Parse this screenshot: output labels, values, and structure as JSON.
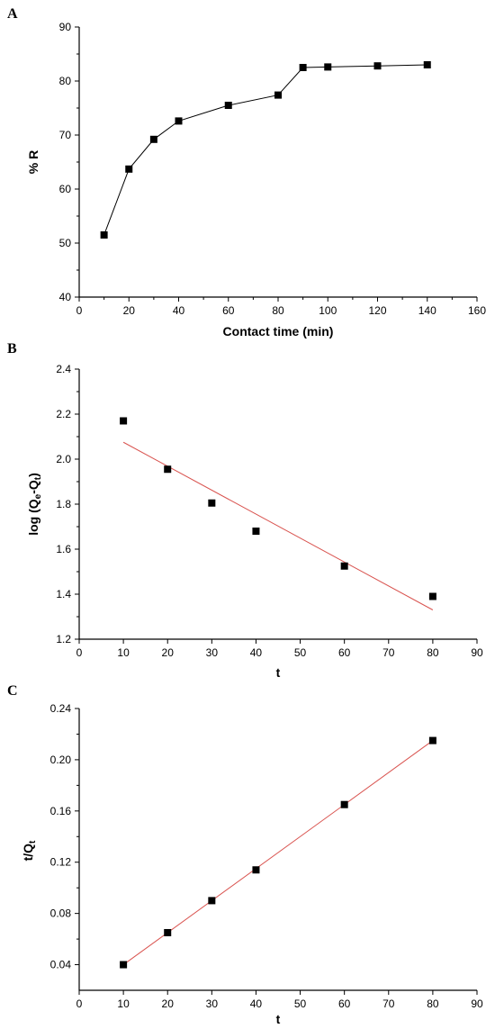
{
  "chart_data": [
    {
      "type": "line",
      "panel_label": "A",
      "xlabel": "Contact time (min)",
      "ylabel": "% R",
      "xlim": [
        0,
        160
      ],
      "ylim": [
        40,
        90
      ],
      "x_ticks": [
        0,
        20,
        40,
        60,
        80,
        100,
        120,
        140,
        160
      ],
      "y_ticks": [
        40,
        50,
        60,
        70,
        80,
        90
      ],
      "marker": "square",
      "connected": true,
      "series": [
        {
          "x": [
            10,
            20,
            30,
            40,
            60,
            80,
            90,
            100,
            120,
            140
          ],
          "y": [
            51.5,
            63.7,
            69.2,
            72.6,
            75.5,
            77.4,
            82.5,
            82.6,
            82.8,
            83.0
          ]
        }
      ]
    },
    {
      "type": "scatter",
      "panel_label": "B",
      "xlabel": "t",
      "ylabel": "log (Q",
      "ylabel_sub1": "e",
      "ylabel_mid": "-Q",
      "ylabel_sub2": "t",
      "ylabel_end": ")",
      "xlim": [
        0,
        90
      ],
      "ylim": [
        1.2,
        2.4
      ],
      "x_ticks": [
        0,
        10,
        20,
        30,
        40,
        50,
        60,
        70,
        80,
        90
      ],
      "y_ticks": [
        1.2,
        1.4,
        1.6,
        1.8,
        2.0,
        2.2,
        2.4
      ],
      "y_tick_decimals": 1,
      "marker": "square",
      "series": [
        {
          "x": [
            10,
            20,
            30,
            40,
            60,
            80
          ],
          "y": [
            2.17,
            1.955,
            1.805,
            1.68,
            1.525,
            1.39
          ]
        }
      ],
      "fit_line": {
        "x": [
          10,
          80
        ],
        "y": [
          2.075,
          1.33
        ],
        "color": "#d9534f"
      }
    },
    {
      "type": "scatter",
      "panel_label": "C",
      "xlabel": "t",
      "ylabel": "t/Q",
      "ylabel_sub": "t",
      "xlim": [
        0,
        90
      ],
      "ylim": [
        0.02,
        0.24
      ],
      "x_ticks": [
        0,
        10,
        20,
        30,
        40,
        50,
        60,
        70,
        80,
        90
      ],
      "y_ticks": [
        0.04,
        0.08,
        0.12,
        0.16,
        0.2,
        0.24
      ],
      "y_tick_decimals": 2,
      "marker": "square",
      "series": [
        {
          "x": [
            10,
            20,
            30,
            40,
            60,
            80
          ],
          "y": [
            0.04,
            0.065,
            0.09,
            0.114,
            0.165,
            0.215
          ]
        }
      ],
      "fit_line": {
        "x": [
          10,
          80
        ],
        "y": [
          0.04,
          0.215
        ],
        "color": "#d9534f"
      }
    }
  ]
}
